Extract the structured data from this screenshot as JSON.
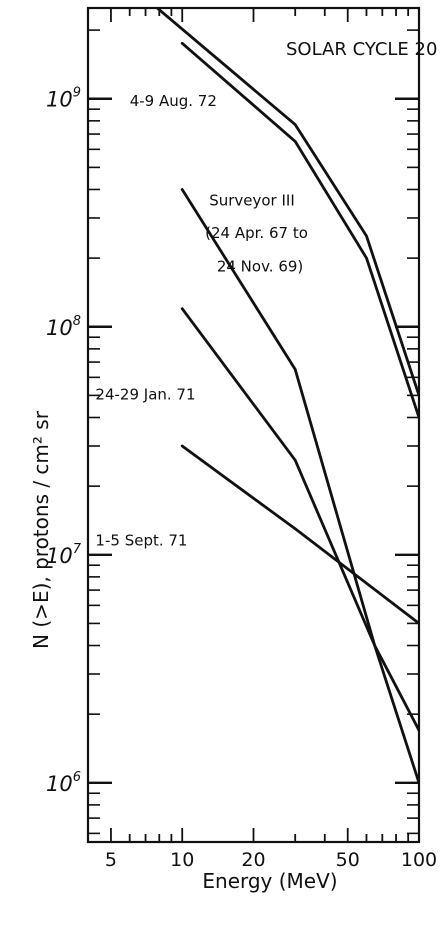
{
  "chart_data": {
    "type": "line",
    "title": "SOLAR CYCLE 20",
    "xlabel": "Energy (MeV)",
    "ylabel": "N (>E), protons / cm² sr",
    "x_scale": "log",
    "y_scale": "log",
    "xlim": [
      4,
      100
    ],
    "ylim": [
      550000,
      2500000000
    ],
    "x_ticks": [
      {
        "value": 5,
        "label": "5"
      },
      {
        "value": 10,
        "label": "10"
      },
      {
        "value": 20,
        "label": "20"
      },
      {
        "value": 50,
        "label": "50"
      },
      {
        "value": 100,
        "label": "100"
      }
    ],
    "y_ticks": [
      {
        "value": 1000000,
        "base": "10",
        "exp": "6"
      },
      {
        "value": 10000000,
        "base": "10",
        "exp": "7"
      },
      {
        "value": 100000000,
        "base": "10",
        "exp": "8"
      },
      {
        "value": 1000000000,
        "base": "10",
        "exp": "9"
      }
    ],
    "grid": false,
    "series": [
      {
        "x": [
          7.5,
          30,
          60,
          100
        ],
        "y": [
          2600000000,
          770000000,
          250000000,
          50000000
        ]
      },
      {
        "x": [
          10,
          30,
          60,
          100
        ],
        "y": [
          1750000000,
          650000000,
          200000000,
          40000000
        ]
      },
      {
        "x": [
          10,
          30,
          65,
          100
        ],
        "y": [
          400000000,
          65000000,
          4000000,
          1000000
        ]
      },
      {
        "x": [
          10,
          30,
          65,
          100
        ],
        "y": [
          120000000,
          26000000,
          4000000,
          1700000
        ]
      },
      {
        "x": [
          10,
          30,
          100
        ],
        "y": [
          30000000,
          13000000,
          5000000
        ]
      }
    ],
    "annotations": [
      {
        "text": "4-9 Aug. 72",
        "x": 6.0,
        "y": 930000000
      },
      {
        "text": "Surveyor III",
        "x": 13.0,
        "y": 340000000
      },
      {
        "text": "(24 Apr. 67 to",
        "x": 12.5,
        "y": 245000000
      },
      {
        "text": "24 Nov. 69)",
        "x": 14.0,
        "y": 175000000
      },
      {
        "text": "24-29 Jan. 71",
        "x": 4.3,
        "y": 48000000
      },
      {
        "text": "1-5 Sept. 71",
        "x": 4.3,
        "y": 11000000
      }
    ]
  }
}
